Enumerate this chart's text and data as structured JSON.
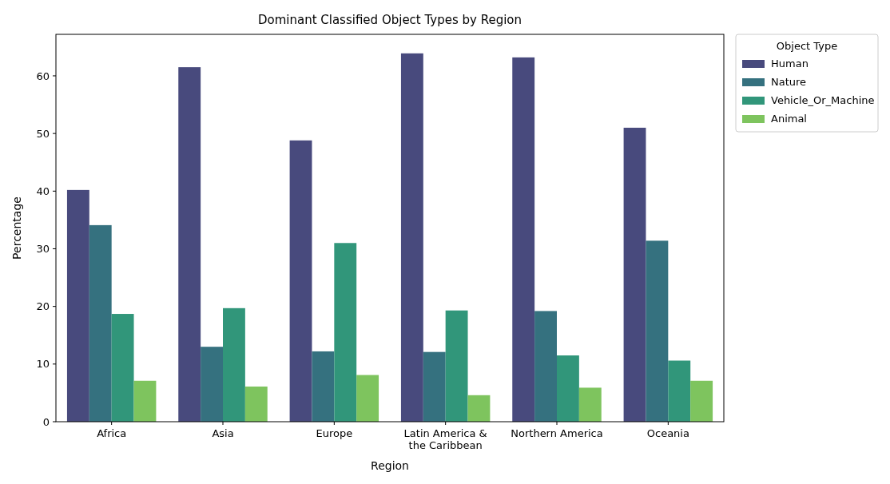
{
  "chart_data": {
    "type": "bar",
    "title": "Dominant Classified Object Types by Region",
    "xlabel": "Region",
    "ylabel": "Percentage",
    "legend_title": "Object Type",
    "categories": [
      "Africa",
      "Asia",
      "Europe",
      "Latin America & the Caribbean",
      "Northern America",
      "Oceania"
    ],
    "series": [
      {
        "name": "Human",
        "color": "#484a7d",
        "values": [
          40.2,
          61.5,
          48.8,
          63.9,
          63.2,
          51.0
        ]
      },
      {
        "name": "Nature",
        "color": "#35717f",
        "values": [
          34.1,
          13.0,
          12.2,
          12.1,
          19.2,
          31.4
        ]
      },
      {
        "name": "Vehicle_Or_Machine",
        "color": "#31967a",
        "values": [
          18.7,
          19.7,
          31.0,
          19.3,
          11.5,
          10.6
        ]
      },
      {
        "name": "Animal",
        "color": "#7ec45e",
        "values": [
          7.1,
          6.1,
          8.1,
          4.6,
          5.9,
          7.1
        ]
      }
    ],
    "ylim": [
      0,
      67.2
    ],
    "yticks": [
      0,
      10,
      20,
      30,
      40,
      50,
      60
    ],
    "legend": "right",
    "grid": false
  }
}
